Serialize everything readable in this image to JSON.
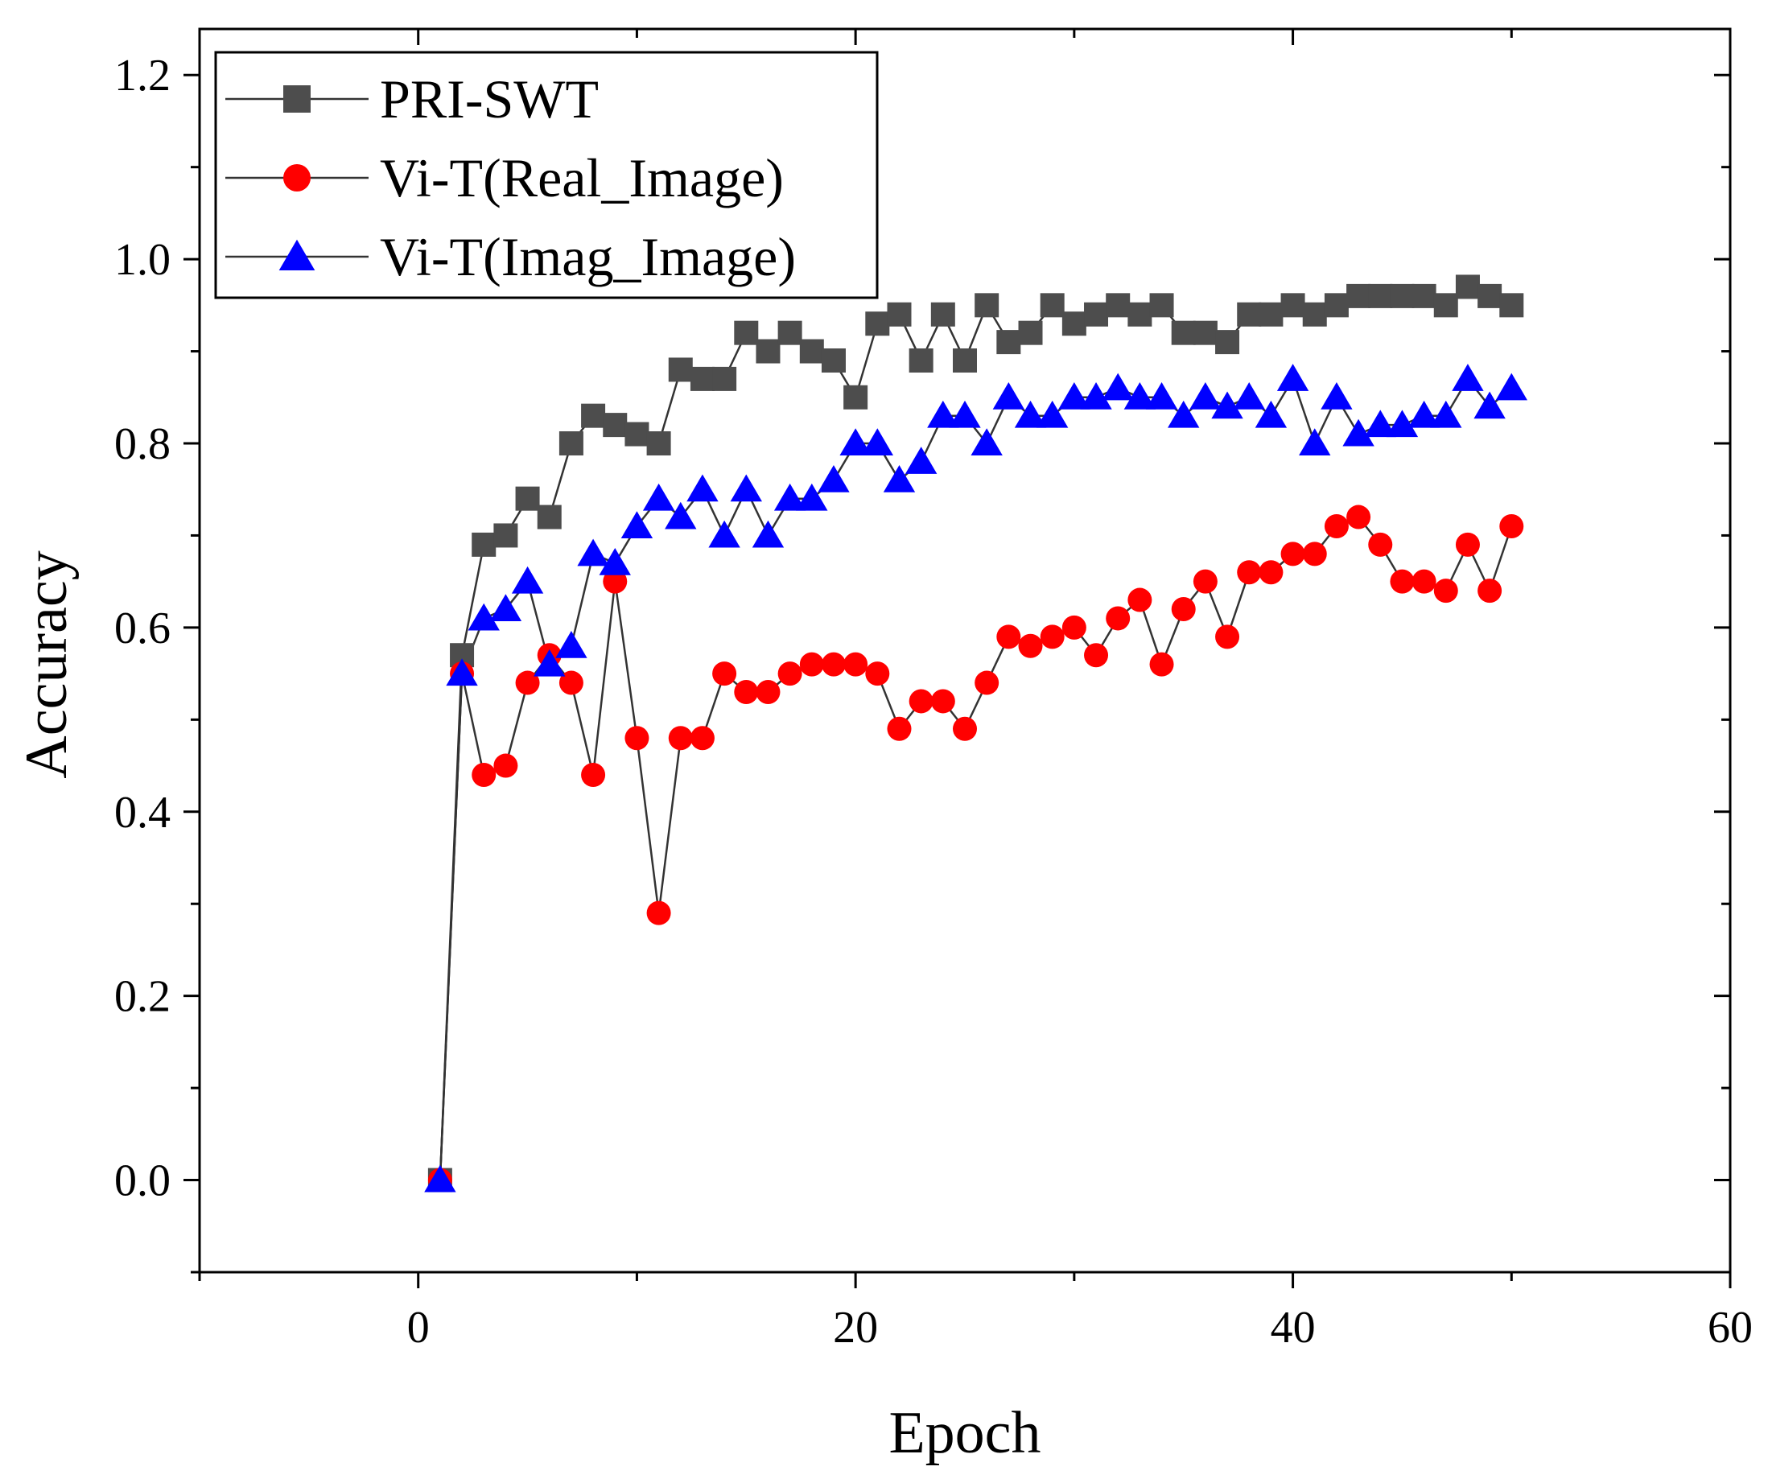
{
  "chart_data": {
    "type": "line",
    "title": "",
    "xlabel": "Epoch",
    "ylabel": "Accuracy",
    "xlim": [
      -10,
      60
    ],
    "ylim": [
      -0.1,
      1.25
    ],
    "x_ticks": [
      0,
      20,
      40,
      60
    ],
    "x_minor_ticks": [
      -10,
      10,
      30,
      50
    ],
    "y_ticks": [
      0.0,
      0.2,
      0.4,
      0.6,
      0.8,
      1.0,
      1.2
    ],
    "y_minor_ticks": [
      -0.1,
      0.1,
      0.3,
      0.5,
      0.7,
      0.9,
      1.1
    ],
    "x_tick_labels": [
      "0",
      "20",
      "40",
      "60"
    ],
    "y_tick_labels": [
      "0.0",
      "0.2",
      "0.4",
      "0.6",
      "0.8",
      "1.0",
      "1.2"
    ],
    "legend_position": "top-left",
    "grid": false,
    "x": [
      1,
      2,
      3,
      4,
      5,
      6,
      7,
      8,
      9,
      10,
      11,
      12,
      13,
      14,
      15,
      16,
      17,
      18,
      19,
      20,
      21,
      22,
      23,
      24,
      25,
      26,
      27,
      28,
      29,
      30,
      31,
      32,
      33,
      34,
      35,
      36,
      37,
      38,
      39,
      40,
      41,
      42,
      43,
      44,
      45,
      46,
      47,
      48,
      49,
      50
    ],
    "series": [
      {
        "name": "PRI-SWT",
        "color": "#4d4d4d",
        "marker": "square",
        "values": [
          0.0,
          0.57,
          0.69,
          0.7,
          0.74,
          0.72,
          0.8,
          0.83,
          0.82,
          0.81,
          0.8,
          0.88,
          0.87,
          0.87,
          0.92,
          0.9,
          0.92,
          0.9,
          0.89,
          0.85,
          0.93,
          0.94,
          0.89,
          0.94,
          0.89,
          0.95,
          0.91,
          0.92,
          0.95,
          0.93,
          0.94,
          0.95,
          0.94,
          0.95,
          0.92,
          0.92,
          0.91,
          0.94,
          0.94,
          0.95,
          0.94,
          0.95,
          0.96,
          0.96,
          0.96,
          0.96,
          0.95,
          0.97,
          0.96,
          0.95
        ]
      },
      {
        "name": "Vi-T(Real_Image)",
        "color": "#ff0000",
        "marker": "circle",
        "values": [
          0.0,
          0.55,
          0.44,
          0.45,
          0.54,
          0.57,
          0.54,
          0.44,
          0.65,
          0.48,
          0.29,
          0.48,
          0.48,
          0.55,
          0.53,
          0.53,
          0.55,
          0.56,
          0.56,
          0.56,
          0.55,
          0.49,
          0.52,
          0.52,
          0.49,
          0.54,
          0.59,
          0.58,
          0.59,
          0.6,
          0.57,
          0.61,
          0.63,
          0.56,
          0.62,
          0.65,
          0.59,
          0.66,
          0.66,
          0.68,
          0.68,
          0.71,
          0.72,
          0.69,
          0.65,
          0.65,
          0.64,
          0.69,
          0.64,
          0.71
        ]
      },
      {
        "name": "Vi-T(Imag_Image)",
        "color": "#0000ff",
        "marker": "triangle",
        "values": [
          0.0,
          0.55,
          0.61,
          0.62,
          0.65,
          0.56,
          0.58,
          0.68,
          0.67,
          0.71,
          0.74,
          0.72,
          0.75,
          0.7,
          0.75,
          0.7,
          0.74,
          0.74,
          0.76,
          0.8,
          0.8,
          0.76,
          0.78,
          0.83,
          0.83,
          0.8,
          0.85,
          0.83,
          0.83,
          0.85,
          0.85,
          0.86,
          0.85,
          0.85,
          0.83,
          0.85,
          0.84,
          0.85,
          0.83,
          0.87,
          0.8,
          0.85,
          0.81,
          0.82,
          0.82,
          0.83,
          0.83,
          0.87,
          0.84,
          0.86
        ]
      }
    ],
    "line_color": "#333333"
  }
}
